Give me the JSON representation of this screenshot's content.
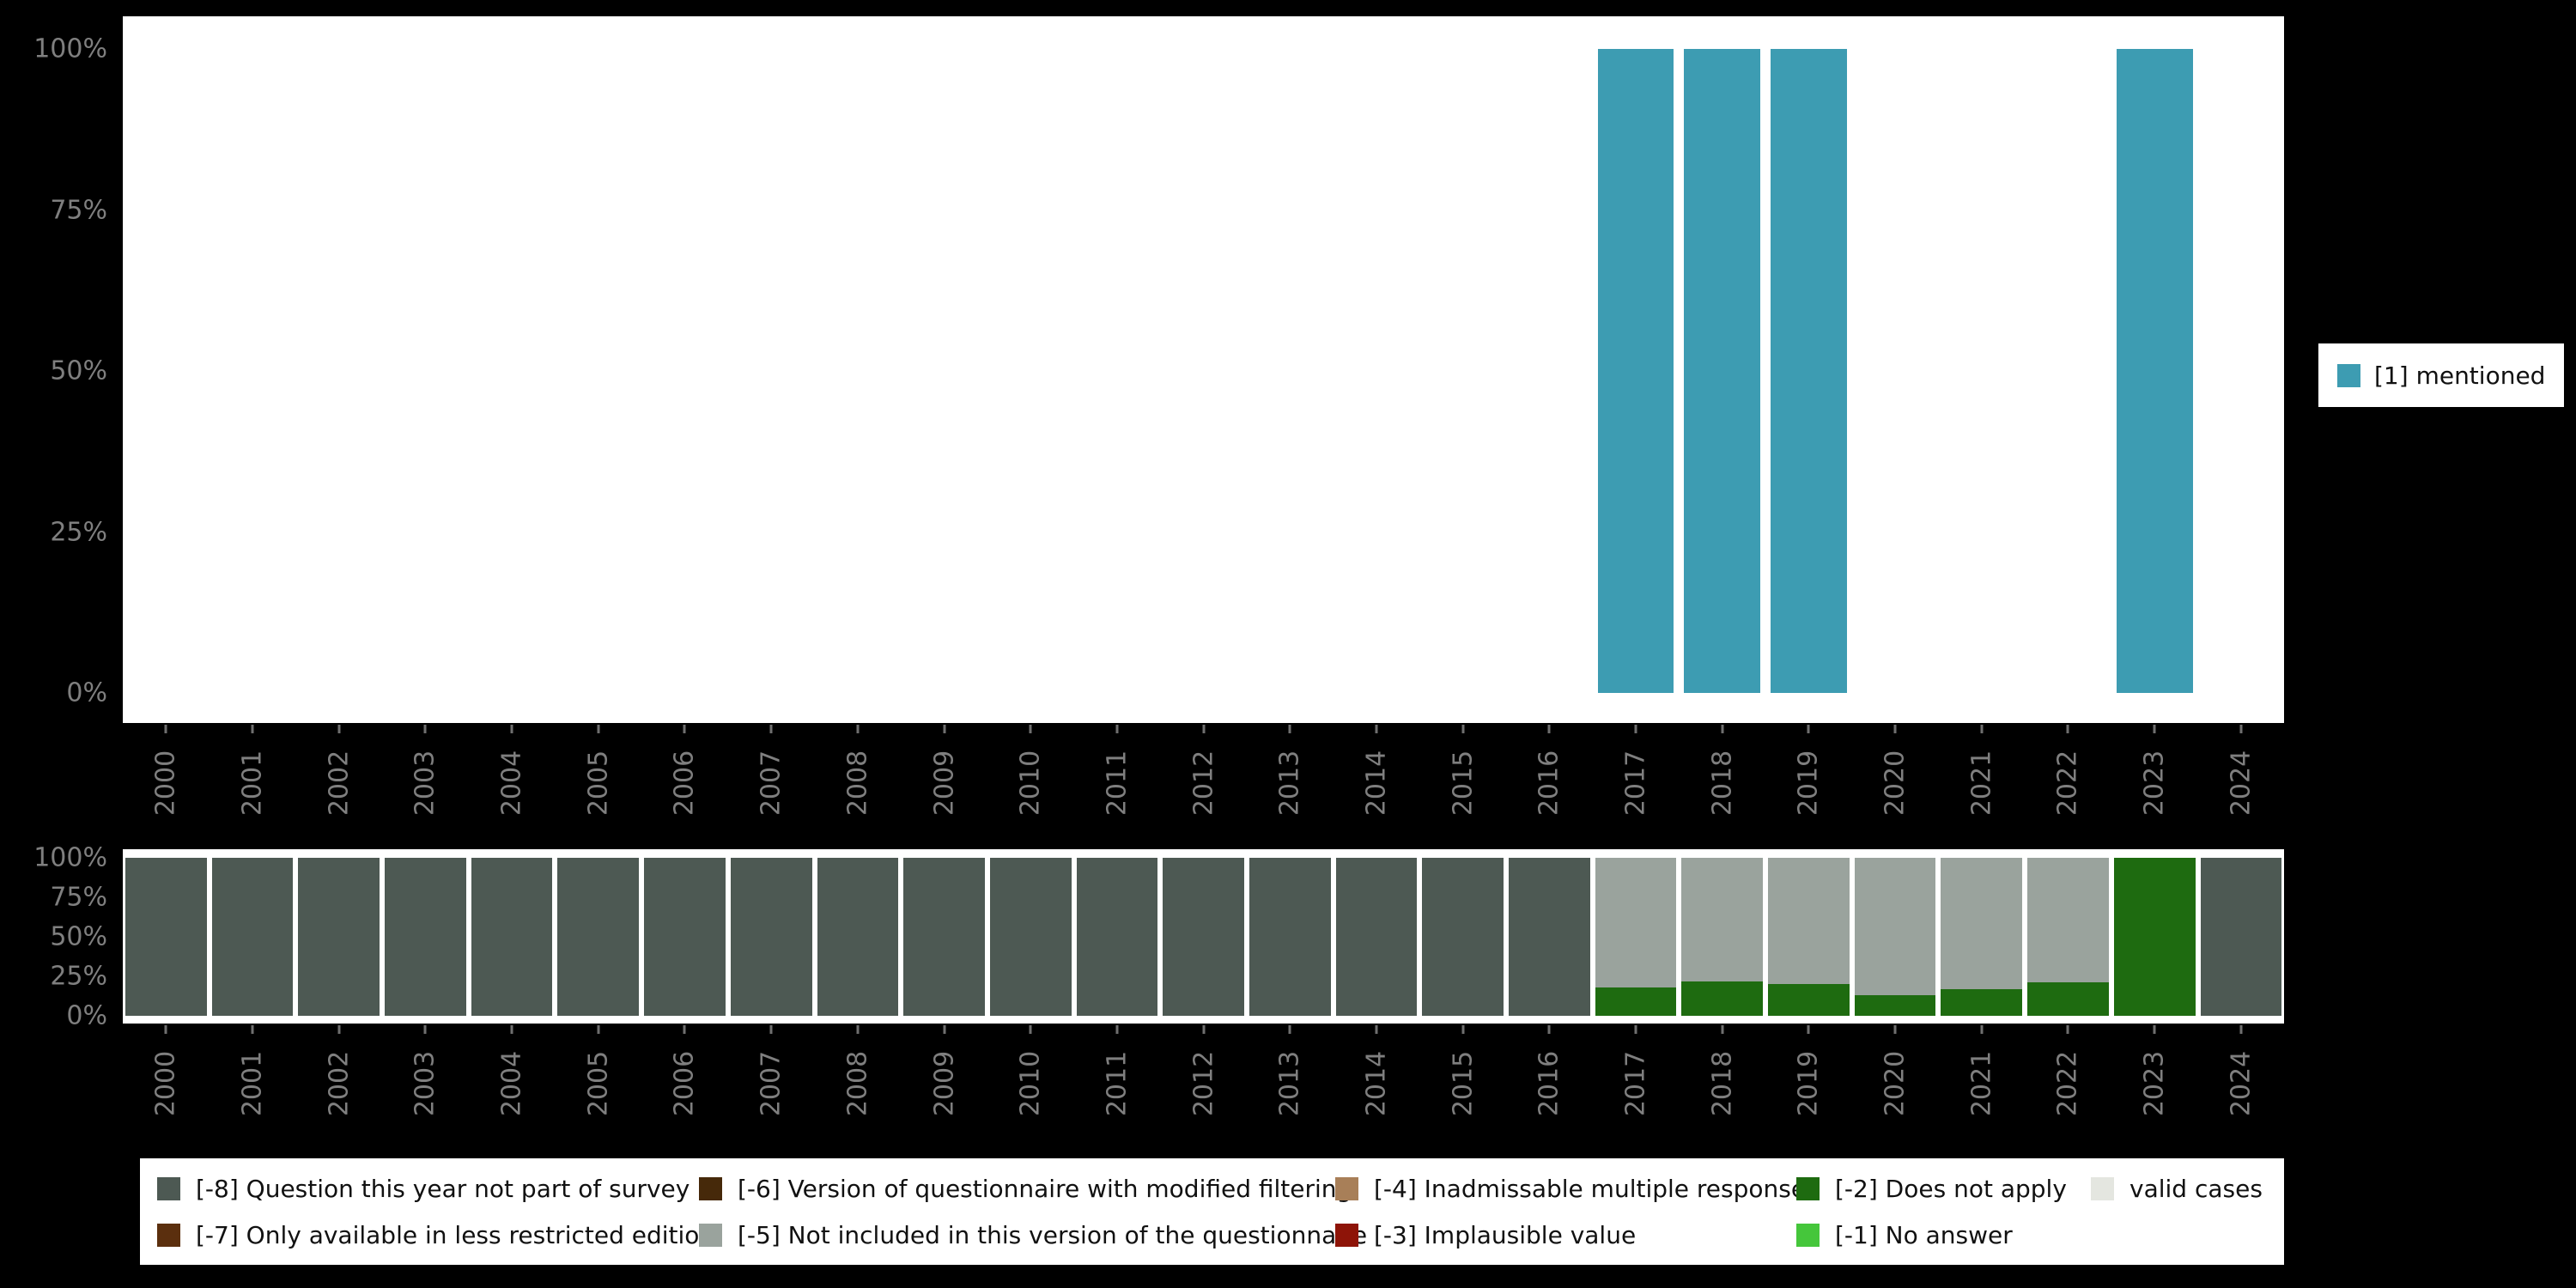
{
  "figure": {
    "background_color": "#000000",
    "panel_color": "#ffffff",
    "axis_text_color": "#7f7f7f"
  },
  "chart_data": [
    {
      "type": "bar",
      "title": "",
      "xlabel": "",
      "ylabel": "",
      "units": "percent",
      "ylim": [
        0,
        100
      ],
      "grid": false,
      "x_label_rotation_degrees": 90,
      "yticks": [
        "100%",
        "75%",
        "50%",
        "25%",
        "0%"
      ],
      "categories": [
        "2000",
        "2001",
        "2002",
        "2003",
        "2004",
        "2005",
        "2006",
        "2007",
        "2008",
        "2009",
        "2010",
        "2011",
        "2012",
        "2013",
        "2014",
        "2015",
        "2016",
        "2017",
        "2018",
        "2019",
        "2020",
        "2021",
        "2022",
        "2023",
        "2024"
      ],
      "series": [
        {
          "name": "[1] mentioned",
          "color": "#3d9cb2",
          "values": [
            0,
            0,
            0,
            0,
            0,
            0,
            0,
            0,
            0,
            0,
            0,
            0,
            0,
            0,
            0,
            0,
            0,
            100,
            100,
            100,
            0,
            0,
            0,
            100,
            0
          ]
        }
      ],
      "legend": {
        "position": "right",
        "items": [
          {
            "label": "[1] mentioned",
            "color": "#3d9cb2"
          }
        ]
      }
    },
    {
      "type": "stacked-bar",
      "title": "",
      "xlabel": "",
      "ylabel": "",
      "units": "percent",
      "ylim": [
        0,
        100
      ],
      "grid": false,
      "x_label_rotation_degrees": 90,
      "stack_order": "bottom-to-top",
      "yticks": [
        "100%",
        "75%",
        "50%",
        "25%",
        "0%"
      ],
      "categories": [
        "2000",
        "2001",
        "2002",
        "2003",
        "2004",
        "2005",
        "2006",
        "2007",
        "2008",
        "2009",
        "2010",
        "2011",
        "2012",
        "2013",
        "2014",
        "2015",
        "2016",
        "2017",
        "2018",
        "2019",
        "2020",
        "2021",
        "2022",
        "2023",
        "2024"
      ],
      "series": [
        {
          "name": "[-2] Does not apply",
          "color": "#1e6b10",
          "values": [
            0,
            0,
            0,
            0,
            0,
            0,
            0,
            0,
            0,
            0,
            0,
            0,
            0,
            0,
            0,
            0,
            0,
            18,
            22,
            20,
            13,
            17,
            21,
            100,
            0
          ]
        },
        {
          "name": "[-5] Not included in this version of the questionnaire",
          "color": "#9aa39d",
          "values": [
            0,
            0,
            0,
            0,
            0,
            0,
            0,
            0,
            0,
            0,
            0,
            0,
            0,
            0,
            0,
            0,
            0,
            82,
            78,
            80,
            87,
            83,
            79,
            0,
            0
          ]
        },
        {
          "name": "[-8] Question this year not part of survey",
          "color": "#4d5953",
          "values": [
            100,
            100,
            100,
            100,
            100,
            100,
            100,
            100,
            100,
            100,
            100,
            100,
            100,
            100,
            100,
            100,
            100,
            0,
            0,
            0,
            0,
            0,
            0,
            0,
            100
          ]
        }
      ]
    }
  ],
  "legend_bottom": {
    "columns": [
      [
        {
          "label": "[-8] Question this year not part of survey",
          "color": "#4d5953"
        },
        {
          "label": "[-7] Only available in less restricted edition",
          "color": "#5b2f0e"
        }
      ],
      [
        {
          "label": "[-6] Version of questionnaire with modified filtering",
          "color": "#46290a"
        },
        {
          "label": "[-5] Not included in this version of the questionnaire",
          "color": "#9aa39d"
        }
      ],
      [
        {
          "label": "[-4] Inadmissable multiple response",
          "color": "#a87f58"
        },
        {
          "label": "[-3] Implausible value",
          "color": "#8e1408"
        }
      ],
      [
        {
          "label": "[-2] Does not apply",
          "color": "#1e6b10"
        },
        {
          "label": "[-1] No answer",
          "color": "#45c63b"
        }
      ],
      [
        {
          "label": "valid cases",
          "color": "#e4e6e0"
        }
      ]
    ]
  }
}
